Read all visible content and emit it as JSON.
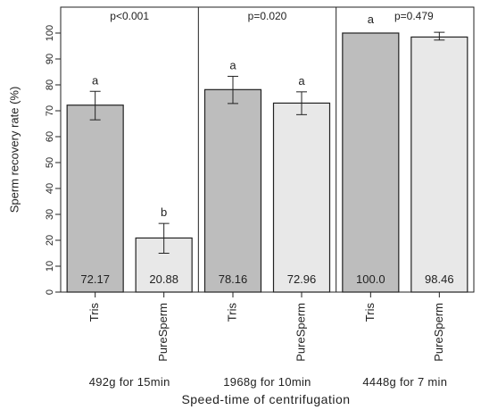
{
  "chart_data": {
    "type": "bar",
    "ylabel": "Sperm recovery rate (%)",
    "xlabel": "Speed-time of centrifugation",
    "ylim": [
      0,
      100
    ],
    "yticks": [
      0,
      10,
      20,
      30,
      40,
      50,
      60,
      70,
      80,
      90,
      100
    ],
    "grid": false,
    "colors": {
      "Tris": "#bdbdbd",
      "PureSperm": "#e8e8e8",
      "stroke": "#222222"
    },
    "groups": [
      {
        "label": "492g for 15min",
        "pvalue": "p<0.001",
        "bars": [
          {
            "category": "Tris",
            "value": 72.17,
            "value_label": "72.17",
            "err_low": 66.5,
            "err_high": 77.5,
            "letter": "a"
          },
          {
            "category": "PureSperm",
            "value": 20.88,
            "value_label": "20.88",
            "err_low": 15.0,
            "err_high": 26.5,
            "letter": "b"
          }
        ]
      },
      {
        "label": "1968g for 10min",
        "pvalue": "p=0.020",
        "bars": [
          {
            "category": "Tris",
            "value": 78.16,
            "value_label": "78.16",
            "err_low": 72.8,
            "err_high": 83.3,
            "letter": "a"
          },
          {
            "category": "PureSperm",
            "value": 72.96,
            "value_label": "72.96",
            "err_low": 68.5,
            "err_high": 77.3,
            "letter": "a"
          }
        ]
      },
      {
        "label": "4448g for 7 min",
        "pvalue": "p=0.479",
        "bars": [
          {
            "category": "Tris",
            "value": 100.0,
            "value_label": "100.0",
            "err_low": 100.0,
            "err_high": 100.0,
            "letter": "a"
          },
          {
            "category": "PureSperm",
            "value": 98.46,
            "value_label": "98.46",
            "err_low": 97.3,
            "err_high": 100.3,
            "letter": ""
          }
        ]
      }
    ]
  }
}
